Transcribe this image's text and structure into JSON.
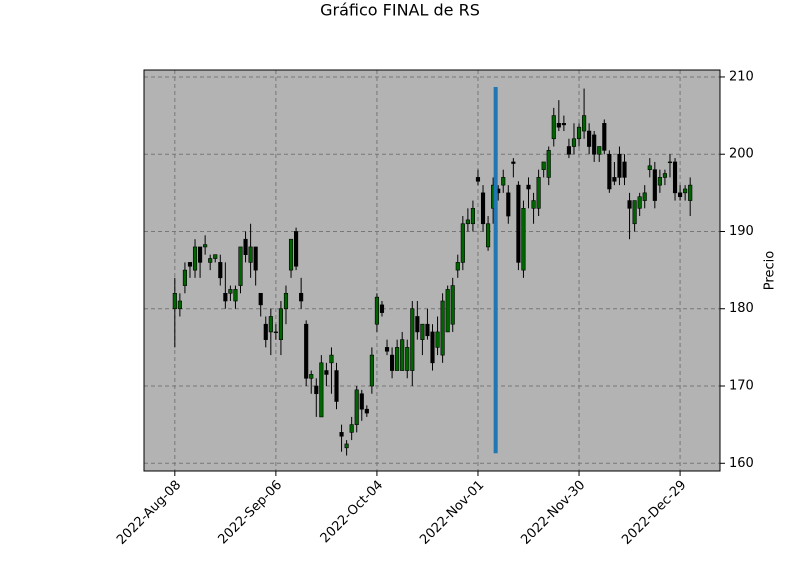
{
  "chart_data": {
    "type": "candlestick",
    "title": "Gráfico FINAL de RS",
    "ylabel": "Precio",
    "open": [
      180,
      180,
      183,
      186,
      185,
      188,
      188,
      186,
      186.5,
      186,
      182,
      182,
      181,
      183,
      189,
      186,
      188,
      182,
      178,
      177,
      177,
      176,
      180,
      185,
      190,
      182,
      178,
      171,
      170,
      166,
      172,
      173,
      172,
      164,
      162,
      164,
      165,
      169,
      167,
      170,
      178,
      180.5,
      175,
      174,
      172,
      172,
      172,
      172,
      179,
      176,
      178,
      177,
      175,
      174,
      177,
      178,
      185,
      186,
      191,
      191,
      197,
      195,
      188,
      193,
      195.5,
      196,
      195,
      199,
      196,
      185,
      196,
      193,
      193,
      198,
      197,
      202,
      204,
      204,
      201,
      201,
      202,
      203,
      203,
      202.5,
      200,
      204,
      200,
      197,
      200,
      199,
      194,
      191,
      193,
      194,
      198,
      198,
      196,
      197,
      199,
      199,
      195,
      195,
      194
    ],
    "high": [
      184,
      182,
      186,
      186,
      189,
      188,
      189.5,
      187,
      187,
      187,
      186,
      183,
      183,
      188,
      190,
      191,
      188,
      182,
      179,
      180,
      178,
      181,
      183,
      189,
      190.5,
      184,
      178.5,
      172,
      171,
      174,
      173,
      175,
      173,
      165,
      163,
      166,
      170,
      169.5,
      167.5,
      175,
      182,
      181,
      176,
      175,
      176,
      177,
      176,
      181,
      181,
      178,
      180,
      178,
      179,
      182,
      183,
      184,
      187,
      192,
      193,
      194,
      198,
      196,
      192,
      197,
      196,
      198,
      196,
      199.5,
      196.5,
      194,
      197,
      195,
      198,
      199,
      201,
      206,
      207,
      205,
      202,
      204,
      204,
      208.5,
      204,
      203,
      201,
      204.5,
      200.5,
      199,
      201,
      200,
      195,
      194,
      195,
      196,
      199.5,
      199,
      198,
      198,
      200,
      199.5,
      196,
      196,
      197
    ],
    "low": [
      175,
      179,
      182,
      184,
      184,
      184,
      187,
      185,
      186,
      183,
      180,
      181,
      180,
      182,
      186,
      184,
      183,
      179,
      175,
      174,
      176,
      174,
      178,
      184,
      185,
      180,
      170,
      169,
      166,
      166,
      170,
      169,
      167,
      161.5,
      161,
      163,
      164,
      165.5,
      166,
      169,
      177,
      179,
      174,
      171,
      172,
      172,
      171,
      170,
      176,
      174,
      176,
      172,
      174,
      173,
      177,
      177,
      184,
      185,
      190,
      190,
      196,
      190,
      187.5,
      191,
      194,
      195,
      191,
      197,
      185,
      184,
      193,
      191,
      192,
      197,
      196,
      201,
      203,
      203,
      199.5,
      200,
      201,
      202,
      200,
      199,
      199,
      200,
      195,
      196,
      196,
      196,
      189,
      190,
      192,
      193,
      197,
      193,
      195,
      196,
      197,
      194,
      194,
      194,
      192
    ],
    "close": [
      182,
      181,
      185,
      185.5,
      188,
      186,
      188.3,
      186.5,
      187,
      184,
      181,
      182.5,
      182.5,
      188,
      187,
      188,
      185,
      180.5,
      176,
      179,
      177,
      180,
      182,
      189,
      185.5,
      181,
      171,
      171.5,
      169,
      173,
      171.5,
      174,
      168,
      163.5,
      162.5,
      165,
      169.5,
      167,
      166.5,
      174,
      181.5,
      179.5,
      174.5,
      172,
      175,
      176,
      175,
      180,
      177,
      178,
      176.5,
      173,
      177,
      181,
      182.5,
      183,
      186,
      191,
      191.5,
      193,
      196.5,
      191,
      191,
      196,
      195,
      197,
      192,
      198.8,
      186,
      193,
      195.5,
      194,
      197,
      199,
      200.5,
      205,
      203.5,
      203.8,
      200,
      202,
      203.5,
      205,
      201,
      200,
      201,
      200.5,
      195.5,
      196.5,
      197,
      197,
      193,
      194,
      194.5,
      195,
      198.5,
      194,
      197,
      197.5,
      199,
      195,
      194.5,
      195.5,
      196
    ],
    "up_color": "#006400",
    "down_color": "#000000",
    "background": "#b3b3b3",
    "xlim": [
      -6.1,
      107.9
    ],
    "ylim": [
      159,
      210.9
    ],
    "xticks": [
      {
        "value": 0,
        "label": "2022-Aug-08"
      },
      {
        "value": 20,
        "label": "2022-Sep-06"
      },
      {
        "value": 40,
        "label": "2022-Oct-04"
      },
      {
        "value": 60,
        "label": "2022-Nov-01"
      },
      {
        "value": 80,
        "label": "2022-Nov-30"
      },
      {
        "value": 100,
        "label": "2022-Dec-29"
      }
    ],
    "yticks": [
      160,
      170,
      180,
      190,
      200,
      210
    ],
    "grid": true,
    "vline": {
      "x": 63.5,
      "ymin": 161.3,
      "ymax": 208.7,
      "color": "#1f77b4"
    }
  }
}
